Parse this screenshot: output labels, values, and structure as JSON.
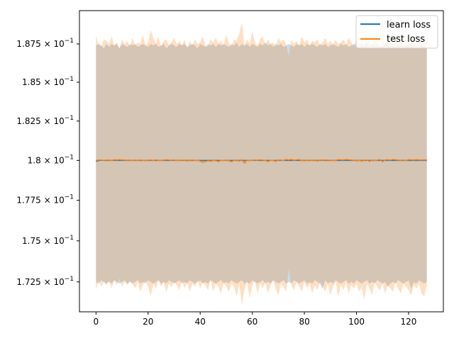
{
  "chart_data": {
    "type": "line",
    "title": "",
    "xlabel": "",
    "ylabel": "",
    "xlim": [
      -6.35,
      133.35
    ],
    "ylim": [
      0.1707,
      0.1897
    ],
    "yscale": "log",
    "grid": false,
    "legend_position": "top-right",
    "x_ticks": [
      0,
      20,
      40,
      60,
      80,
      100,
      120
    ],
    "x_tick_labels": [
      "0",
      "20",
      "40",
      "60",
      "80",
      "100",
      "120"
    ],
    "y_ticks": [
      0.1725,
      0.175,
      0.1775,
      0.18,
      0.1825,
      0.185,
      0.1875
    ],
    "y_tick_labels": [
      {
        "mantissa": "1.725",
        "exp": "−1"
      },
      {
        "mantissa": "1.75",
        "exp": "−1"
      },
      {
        "mantissa": "1.775",
        "exp": "−1"
      },
      {
        "mantissa": "1.8",
        "exp": "−1"
      },
      {
        "mantissa": "1.825",
        "exp": "−1"
      },
      {
        "mantissa": "1.85",
        "exp": "−1"
      },
      {
        "mantissa": "1.875",
        "exp": "−1"
      }
    ],
    "x": [
      0,
      1,
      2,
      3,
      4,
      5,
      6,
      7,
      8,
      9,
      10,
      11,
      12,
      13,
      14,
      15,
      16,
      17,
      18,
      19,
      20,
      21,
      22,
      23,
      24,
      25,
      26,
      27,
      28,
      29,
      30,
      31,
      32,
      33,
      34,
      35,
      36,
      37,
      38,
      39,
      40,
      41,
      42,
      43,
      44,
      45,
      46,
      47,
      48,
      49,
      50,
      51,
      52,
      53,
      54,
      55,
      56,
      57,
      58,
      59,
      60,
      61,
      62,
      63,
      64,
      65,
      66,
      67,
      68,
      69,
      70,
      71,
      72,
      73,
      74,
      75,
      76,
      77,
      78,
      79,
      80,
      81,
      82,
      83,
      84,
      85,
      86,
      87,
      88,
      89,
      90,
      91,
      92,
      93,
      94,
      95,
      96,
      97,
      98,
      99,
      100,
      101,
      102,
      103,
      104,
      105,
      106,
      107,
      108,
      109,
      110,
      111,
      112,
      113,
      114,
      115,
      116,
      117,
      118,
      119,
      120,
      121,
      122,
      123,
      124,
      125,
      126,
      127
    ],
    "series": [
      {
        "name": "learn loss",
        "color": "#1f77b4",
        "values": [
          0.17995,
          0.17999,
          0.18001,
          0.18,
          0.18,
          0.18,
          0.18,
          0.18,
          0.18,
          0.18,
          0.18,
          0.18,
          0.18,
          0.18,
          0.18,
          0.18,
          0.18,
          0.18,
          0.18,
          0.18,
          0.18,
          0.18,
          0.18,
          0.18,
          0.18,
          0.18,
          0.18,
          0.18,
          0.18,
          0.18,
          0.18,
          0.18,
          0.18,
          0.18,
          0.18,
          0.18,
          0.18,
          0.18,
          0.18,
          0.18,
          0.18,
          0.18,
          0.18,
          0.18,
          0.18,
          0.18,
          0.18,
          0.18,
          0.18,
          0.18,
          0.18,
          0.18,
          0.18,
          0.18,
          0.18,
          0.18,
          0.18,
          0.18,
          0.18,
          0.18,
          0.18,
          0.18,
          0.18,
          0.18,
          0.18,
          0.18,
          0.18,
          0.18,
          0.18,
          0.18,
          0.18,
          0.18,
          0.18,
          0.18,
          0.18,
          0.18,
          0.18,
          0.18,
          0.18,
          0.18,
          0.18,
          0.18,
          0.18,
          0.18,
          0.18,
          0.18,
          0.18,
          0.18,
          0.18,
          0.18,
          0.18,
          0.18,
          0.18,
          0.18,
          0.18,
          0.18,
          0.18,
          0.18,
          0.18,
          0.18,
          0.18,
          0.18,
          0.18,
          0.18,
          0.18,
          0.18,
          0.18,
          0.18,
          0.18,
          0.18,
          0.18,
          0.18,
          0.18,
          0.18,
          0.18,
          0.18,
          0.18,
          0.18,
          0.18,
          0.18,
          0.18,
          0.18,
          0.18,
          0.18,
          0.18,
          0.18,
          0.18,
          0.18
        ],
        "upper": [
          0.1874,
          0.1875,
          0.1874,
          0.1872,
          0.1875,
          0.1873,
          0.1875,
          0.1874,
          0.1875,
          0.1872,
          0.1875,
          0.1874,
          0.1873,
          0.1875,
          0.1874,
          0.1875,
          0.1873,
          0.1874,
          0.1875,
          0.1874,
          0.1873,
          0.1875,
          0.1874,
          0.1875,
          0.1873,
          0.1874,
          0.1875,
          0.1872,
          0.1874,
          0.1875,
          0.1874,
          0.1873,
          0.1875,
          0.1874,
          0.1875,
          0.1873,
          0.1874,
          0.1875,
          0.1874,
          0.1872,
          0.1875,
          0.1874,
          0.1873,
          0.1875,
          0.1874,
          0.1875,
          0.1873,
          0.1875,
          0.1874,
          0.1875,
          0.1874,
          0.1873,
          0.1875,
          0.1874,
          0.1876,
          0.1873,
          0.1875,
          0.1874,
          0.1875,
          0.1873,
          0.1875,
          0.1874,
          0.1873,
          0.1875,
          0.1874,
          0.1876,
          0.1874,
          0.1875,
          0.1873,
          0.1875,
          0.1874,
          0.1875,
          0.1873,
          0.1874,
          0.1875,
          0.1874,
          0.1873,
          0.1875,
          0.1874,
          0.1875,
          0.1873,
          0.1875,
          0.1874,
          0.1875,
          0.1874,
          0.1873,
          0.1875,
          0.1874,
          0.1875,
          0.1873,
          0.1874,
          0.1875,
          0.1874,
          0.1873,
          0.1875,
          0.1874,
          0.1875,
          0.1873,
          0.1874,
          0.1875,
          0.1874,
          0.1873,
          0.1875,
          0.1874,
          0.1876,
          0.1873,
          0.1875,
          0.1874,
          0.1875,
          0.1873,
          0.1874,
          0.1875,
          0.1874,
          0.1873,
          0.1875,
          0.1872,
          0.1875,
          0.1873,
          0.1874,
          0.1875,
          0.1874,
          0.1873,
          0.1875,
          0.1874,
          0.1873,
          0.1875,
          0.1874,
          0.1873
        ],
        "lower": [
          0.1725,
          0.1724,
          0.1726,
          0.1725,
          0.1724,
          0.1725,
          0.1724,
          0.1726,
          0.1725,
          0.1724,
          0.1725,
          0.1726,
          0.1724,
          0.1725,
          0.1724,
          0.1725,
          0.1726,
          0.1724,
          0.1725,
          0.1724,
          0.1726,
          0.1725,
          0.1724,
          0.1725,
          0.1726,
          0.1724,
          0.1725,
          0.1724,
          0.1726,
          0.1725,
          0.1724,
          0.1725,
          0.1726,
          0.1724,
          0.1725,
          0.1724,
          0.1726,
          0.1725,
          0.1724,
          0.1725,
          0.1726,
          0.1724,
          0.1725,
          0.1724,
          0.1726,
          0.1725,
          0.1724,
          0.1725,
          0.1726,
          0.1724,
          0.1725,
          0.1724,
          0.1726,
          0.1725,
          0.1724,
          0.1725,
          0.1726,
          0.1724,
          0.1725,
          0.1724,
          0.1726,
          0.1725,
          0.1724,
          0.1725,
          0.1726,
          0.1724,
          0.1725,
          0.1724,
          0.1726,
          0.1725,
          0.1724,
          0.1725,
          0.1726,
          0.1724,
          0.1725,
          0.1724,
          0.1726,
          0.1725,
          0.1724,
          0.1725,
          0.1726,
          0.1724,
          0.1725,
          0.1724,
          0.1726,
          0.1725,
          0.1724,
          0.1721,
          0.1726,
          0.1724,
          0.1725,
          0.1724,
          0.1726,
          0.1725,
          0.1724,
          0.1725,
          0.1726,
          0.1724,
          0.1725,
          0.1724,
          0.1726,
          0.1725,
          0.1724,
          0.1725,
          0.1726,
          0.1724,
          0.1725,
          0.1724,
          0.1726,
          0.1725,
          0.1724,
          0.1725,
          0.1722,
          0.1724,
          0.1725,
          0.1724,
          0.1726,
          0.1725,
          0.1724,
          0.1725,
          0.1726,
          0.1721,
          0.1725,
          0.1724,
          0.1726,
          0.1725,
          0.1724,
          0.1725
        ]
      },
      {
        "name": "test loss",
        "color": "#ff7f0e",
        "values": [
          0.18,
          0.18003,
          0.18002,
          0.18001,
          0.18002,
          0.18002,
          0.18,
          0.18004,
          0.18002,
          0.18005,
          0.18003,
          0.18002,
          0.18001,
          0.18002,
          0.17999,
          0.18002,
          0.18,
          0.18003,
          0.18001,
          0.17998,
          0.18002,
          0.18003,
          0.18,
          0.18004,
          0.17999,
          0.18,
          0.18002,
          0.18004,
          0.18003,
          0.18001,
          0.18003,
          0.17999,
          0.18002,
          0.18001,
          0.18002,
          0.17996,
          0.18001,
          0.18003,
          0.17999,
          0.18001,
          0.17996,
          0.17988,
          0.17993,
          0.17998,
          0.17995,
          0.18,
          0.17998,
          0.17993,
          0.18001,
          0.18,
          0.18002,
          0.17999,
          0.17992,
          0.18,
          0.18003,
          0.17995,
          0.18005,
          0.17983,
          0.18002,
          0.17999,
          0.18001,
          0.18003,
          0.18001,
          0.18004,
          0.18002,
          0.18,
          0.17993,
          0.18001,
          0.18,
          0.17994,
          0.18003,
          0.18002,
          0.18,
          0.18006,
          0.18003,
          0.18006,
          0.18001,
          0.18004,
          0.18005,
          0.18,
          0.17997,
          0.18001,
          0.18002,
          0.17999,
          0.18003,
          0.17996,
          0.18003,
          0.18001,
          0.18003,
          0.18002,
          0.18001,
          0.17999,
          0.18,
          0.18005,
          0.18004,
          0.18003,
          0.18006,
          0.18004,
          0.18003,
          0.18001,
          0.17997,
          0.18001,
          0.17995,
          0.18003,
          0.18002,
          0.17994,
          0.18003,
          0.17999,
          0.18002,
          0.18005,
          0.17992,
          0.18003,
          0.18004,
          0.18002,
          0.18006,
          0.18004,
          0.18002,
          0.18001,
          0.18003,
          0.17998,
          0.18005,
          0.18004,
          0.18002,
          0.18005,
          0.18003,
          0.18003,
          0.18003,
          0.18004
        ],
        "upper": [
          0.188,
          0.1875,
          0.1873,
          0.1878,
          0.1877,
          0.1875,
          0.188,
          0.1874,
          0.1876,
          0.1872,
          0.1878,
          0.1875,
          0.1877,
          0.1873,
          0.1879,
          0.1874,
          0.1876,
          0.1875,
          0.1881,
          0.1874,
          0.1876,
          0.1884,
          0.1879,
          0.1875,
          0.188,
          0.1873,
          0.1877,
          0.1878,
          0.1874,
          0.1876,
          0.1879,
          0.1875,
          0.1877,
          0.1874,
          0.1878,
          0.1872,
          0.1877,
          0.1874,
          0.1878,
          0.1875,
          0.1876,
          0.188,
          0.1874,
          0.1873,
          0.1878,
          0.1876,
          0.1879,
          0.1875,
          0.1877,
          0.1874,
          0.1881,
          0.1876,
          0.1873,
          0.1878,
          0.1877,
          0.1882,
          0.1889,
          0.1874,
          0.1878,
          0.1875,
          0.1883,
          0.1876,
          0.1874,
          0.1878,
          0.188,
          0.1874,
          0.1878,
          0.1875,
          0.1876,
          0.1873,
          0.1879,
          0.1876,
          0.1878,
          0.1874,
          0.1867,
          0.1878,
          0.1875,
          0.1877,
          0.1874,
          0.188,
          0.1876,
          0.1878,
          0.1874,
          0.1877,
          0.1876,
          0.1878,
          0.1874,
          0.1876,
          0.1879,
          0.1875,
          0.1877,
          0.1874,
          0.1878,
          0.1875,
          0.1876,
          0.1878,
          0.1874,
          0.1879,
          0.1876,
          0.1873,
          0.1878,
          0.1875,
          0.1877,
          0.1874,
          0.1879,
          0.1876,
          0.1874,
          0.1878,
          0.1876,
          0.1875,
          0.1877,
          0.1875,
          0.1879,
          0.1876,
          0.1874,
          0.1878,
          0.1875,
          0.1877,
          0.1874,
          0.1879,
          0.1876,
          0.1875,
          0.1878,
          0.1874,
          0.1877,
          0.1875,
          0.1878,
          0.1875
        ],
        "lower": [
          0.172,
          0.1726,
          0.1722,
          0.1725,
          0.1723,
          0.1726,
          0.1721,
          0.1726,
          0.1723,
          0.1727,
          0.1722,
          0.1725,
          0.1723,
          0.1726,
          0.1724,
          0.1721,
          0.1725,
          0.1719,
          0.1723,
          0.1726,
          0.1722,
          0.1716,
          0.1724,
          0.1721,
          0.1726,
          0.1722,
          0.1725,
          0.1719,
          0.1724,
          0.1722,
          0.1725,
          0.1723,
          0.172,
          0.1726,
          0.1721,
          0.1725,
          0.1719,
          0.1724,
          0.1722,
          0.1726,
          0.1721,
          0.1725,
          0.1723,
          0.172,
          0.1726,
          0.1719,
          0.1724,
          0.1722,
          0.1718,
          0.1725,
          0.1722,
          0.1719,
          0.1724,
          0.1722,
          0.1716,
          0.1724,
          0.1711,
          0.172,
          0.1725,
          0.1715,
          0.1723,
          0.1726,
          0.1718,
          0.1724,
          0.1721,
          0.1725,
          0.1718,
          0.1723,
          0.1726,
          0.1721,
          0.1717,
          0.1724,
          0.1722,
          0.1719,
          0.1733,
          0.1723,
          0.172,
          0.1725,
          0.1722,
          0.1719,
          0.1725,
          0.1721,
          0.1724,
          0.1718,
          0.1723,
          0.172,
          0.1725,
          0.1722,
          0.1719,
          0.1724,
          0.1717,
          0.1722,
          0.1725,
          0.1716,
          0.1723,
          0.172,
          0.1725,
          0.1718,
          0.1723,
          0.1721,
          0.1724,
          0.1719,
          0.1722,
          0.1714,
          0.1724,
          0.1721,
          0.1717,
          0.1725,
          0.1722,
          0.172,
          0.1724,
          0.1718,
          0.1723,
          0.1721,
          0.1719,
          0.1725,
          0.1721,
          0.1718,
          0.1724,
          0.1722,
          0.172,
          0.1717,
          0.1723,
          0.1721,
          0.1724,
          0.1718,
          0.1716,
          0.1723
        ]
      }
    ]
  },
  "legend": {
    "items": [
      {
        "label": "learn loss",
        "color": "#1f77b4"
      },
      {
        "label": "test loss",
        "color": "#ff7f0e"
      }
    ]
  }
}
